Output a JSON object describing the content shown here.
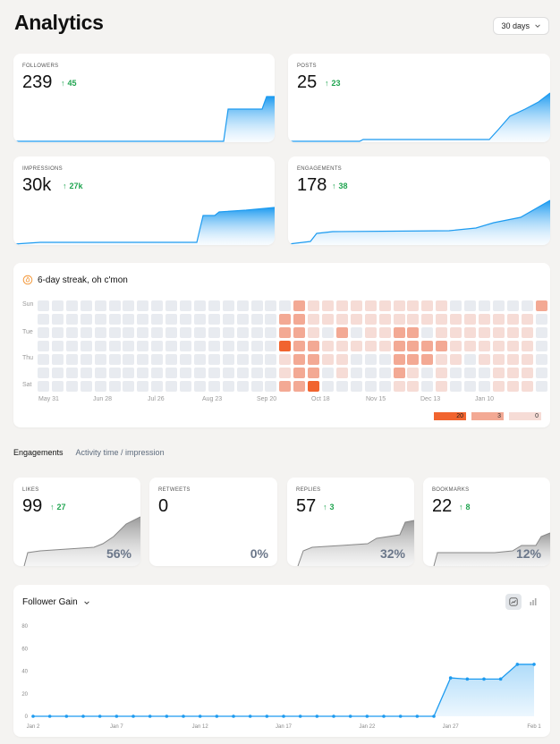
{
  "page": {
    "title": "Analytics"
  },
  "range": {
    "label": "30 days"
  },
  "overview": [
    {
      "label": "FOLLOWERS",
      "value": "239",
      "delta": "45"
    },
    {
      "label": "POSTS",
      "value": "25",
      "delta": "23"
    },
    {
      "label": "IMPRESSIONS",
      "value": "30k",
      "delta": "27k"
    },
    {
      "label": "ENGAGEMENTS",
      "value": "178",
      "delta": "38"
    }
  ],
  "streak": {
    "title": "6-day streak, oh c'mon",
    "days": [
      "Sun",
      "Tue",
      "Thu",
      "Sat"
    ],
    "months": [
      "May 31",
      "Jun 28",
      "Jul 26",
      "Aug 23",
      "Sep 20",
      "Oct 18",
      "Nov 15",
      "Dec 13",
      "Jan 10"
    ],
    "legend": [
      "20",
      "3",
      "0"
    ],
    "colors": {
      "empty": "#e8ebf0",
      "light": "#f6dcd6",
      "mid": "#f3a994",
      "dark": "#f1642f"
    }
  },
  "tabs": {
    "active": "Engagements",
    "inactive": "Activity time / impression"
  },
  "engagements": [
    {
      "label": "LIKES",
      "value": "99",
      "delta": "27",
      "pct": "56%"
    },
    {
      "label": "RETWEETS",
      "value": "0",
      "delta": "",
      "pct": "0%"
    },
    {
      "label": "REPLIES",
      "value": "57",
      "delta": "3",
      "pct": "32%"
    },
    {
      "label": "BOOKMARKS",
      "value": "22",
      "delta": "8",
      "pct": "12%"
    }
  ],
  "follower_gain": {
    "title": "Follower Gain"
  },
  "chart_data": {
    "type": "area",
    "title": "Follower Gain",
    "x_tick_labels": [
      "Jan 2",
      "Jan 7",
      "Jan 12",
      "Jan 17",
      "Jan 22",
      "Jan 27",
      "Feb 1"
    ],
    "y_tick_labels": [
      "0",
      "20",
      "40",
      "60",
      "80"
    ],
    "ylim": [
      0,
      80
    ],
    "x": [
      "Jan 2",
      "Jan 3",
      "Jan 4",
      "Jan 5",
      "Jan 6",
      "Jan 7",
      "Jan 8",
      "Jan 9",
      "Jan 10",
      "Jan 11",
      "Jan 12",
      "Jan 13",
      "Jan 14",
      "Jan 15",
      "Jan 16",
      "Jan 17",
      "Jan 18",
      "Jan 19",
      "Jan 20",
      "Jan 21",
      "Jan 22",
      "Jan 23",
      "Jan 24",
      "Jan 25",
      "Jan 26",
      "Jan 27",
      "Jan 28",
      "Jan 29",
      "Jan 30",
      "Jan 31",
      "Feb 1"
    ],
    "values": [
      0,
      0,
      0,
      0,
      0,
      0,
      0,
      0,
      0,
      0,
      0,
      0,
      0,
      0,
      0,
      0,
      0,
      0,
      0,
      0,
      0,
      0,
      0,
      0,
      0,
      34,
      33,
      33,
      33,
      46,
      46
    ],
    "color": "#1d9bf0"
  }
}
